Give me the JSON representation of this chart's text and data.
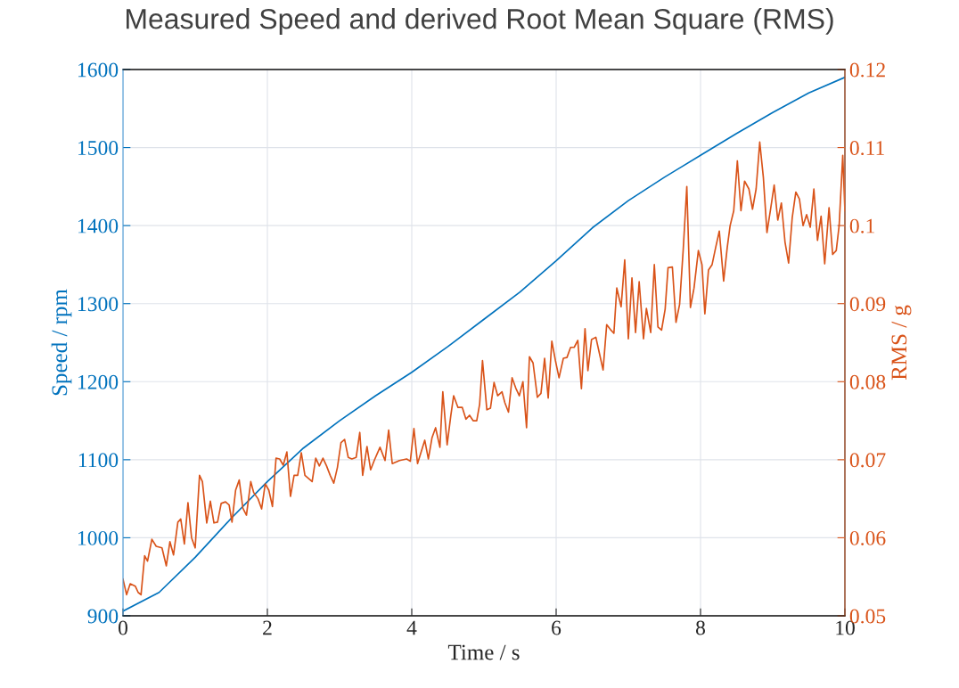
{
  "chart_data": {
    "type": "line",
    "title": "Measured Speed and derived Root Mean Square (RMS)",
    "xlabel": "Time / s",
    "ylabel": "Speed / rpm",
    "y2label": "RMS / g",
    "xlim": [
      0,
      10
    ],
    "xticks": [
      0,
      2,
      4,
      6,
      8,
      10
    ],
    "ylim": [
      900,
      1600
    ],
    "yticks": [
      900,
      1000,
      1100,
      1200,
      1300,
      1400,
      1500,
      1600
    ],
    "y2lim": [
      0.05,
      0.12
    ],
    "y2ticks": [
      0.05,
      0.06,
      0.07,
      0.08,
      0.09,
      0.1,
      0.11,
      0.12
    ],
    "grid": true,
    "marker": "none",
    "line_style": "solid",
    "series": [
      {
        "color": "#0072bd",
        "x": [
          0,
          0.5,
          1,
          1.5,
          2,
          2.5,
          3,
          3.5,
          4,
          4.5,
          5,
          5.5,
          6,
          6.5,
          7,
          7.5,
          8,
          8.5,
          9,
          9.5,
          10
        ],
        "values": [
          906,
          930,
          975,
          1025,
          1072,
          1115,
          1150,
          1182,
          1212,
          1245,
          1280,
          1315,
          1355,
          1397,
          1432,
          1462,
          1490,
          1518,
          1545,
          1570,
          1590
        ]
      },
      {
        "color": "#d95319",
        "axis": "y2",
        "x": [
          0,
          0.05,
          0.1,
          0.17,
          0.21,
          0.25,
          0.3,
          0.34,
          0.4,
          0.46,
          0.54,
          0.6,
          0.65,
          0.7,
          0.76,
          0.8,
          0.85,
          0.9,
          0.95,
          1.0,
          1.06,
          1.1,
          1.16,
          1.21,
          1.26,
          1.31,
          1.36,
          1.42,
          1.47,
          1.51,
          1.56,
          1.61,
          1.66,
          1.71,
          1.77,
          1.81,
          1.87,
          1.92,
          1.97,
          2.02,
          2.07,
          2.12,
          2.17,
          2.22,
          2.27,
          2.32,
          2.37,
          2.42,
          2.47,
          2.52,
          2.62,
          2.67,
          2.72,
          2.77,
          2.82,
          2.87,
          2.92,
          2.97,
          3.02,
          3.07,
          3.12,
          3.17,
          3.23,
          3.28,
          3.32,
          3.38,
          3.43,
          3.48,
          3.56,
          3.63,
          3.68,
          3.73,
          3.83,
          3.93,
          3.98,
          4.03,
          4.08,
          4.18,
          4.23,
          4.28,
          4.33,
          4.39,
          4.43,
          4.49,
          4.54,
          4.58,
          4.64,
          4.7,
          4.75,
          4.8,
          4.85,
          4.9,
          4.94,
          4.98,
          5.04,
          5.09,
          5.14,
          5.19,
          5.25,
          5.29,
          5.34,
          5.39,
          5.44,
          5.49,
          5.54,
          5.59,
          5.63,
          5.68,
          5.74,
          5.79,
          5.84,
          5.89,
          5.94,
          5.99,
          6.04,
          6.1,
          6.15,
          6.2,
          6.25,
          6.3,
          6.35,
          6.4,
          6.44,
          6.49,
          6.55,
          6.6,
          6.65,
          6.7,
          6.75,
          6.8,
          6.84,
          6.9,
          6.95,
          7.0,
          7.05,
          7.1,
          7.15,
          7.21,
          7.25,
          7.31,
          7.36,
          7.41,
          7.46,
          7.51,
          7.55,
          7.61,
          7.66,
          7.71,
          7.76,
          7.81,
          7.86,
          7.91,
          7.97,
          8.02,
          8.06,
          8.11,
          8.16,
          8.21,
          8.26,
          8.32,
          8.37,
          8.41,
          8.46,
          8.51,
          8.56,
          8.61,
          8.67,
          8.72,
          8.77,
          8.82,
          8.87,
          8.92,
          8.97,
          9.02,
          9.07,
          9.12,
          9.17,
          9.22,
          9.27,
          9.32,
          9.37,
          9.42,
          9.47,
          9.52,
          9.57,
          9.62,
          9.67,
          9.72,
          9.78,
          9.83,
          9.88,
          9.92,
          9.97,
          10.0
        ],
        "values": [
          0.0547,
          0.0527,
          0.0541,
          0.0538,
          0.053,
          0.0527,
          0.0577,
          0.057,
          0.0598,
          0.0589,
          0.0587,
          0.0564,
          0.0595,
          0.0578,
          0.062,
          0.0624,
          0.0592,
          0.0645,
          0.06,
          0.0587,
          0.068,
          0.0672,
          0.0619,
          0.0647,
          0.0619,
          0.062,
          0.0644,
          0.0646,
          0.0642,
          0.062,
          0.0661,
          0.0674,
          0.0638,
          0.0629,
          0.0672,
          0.0658,
          0.065,
          0.0637,
          0.0669,
          0.0661,
          0.064,
          0.0702,
          0.0701,
          0.0693,
          0.071,
          0.0653,
          0.068,
          0.068,
          0.0709,
          0.068,
          0.0672,
          0.0702,
          0.0692,
          0.0702,
          0.0692,
          0.068,
          0.067,
          0.069,
          0.0722,
          0.0726,
          0.0703,
          0.0701,
          0.0703,
          0.0735,
          0.068,
          0.0717,
          0.0687,
          0.0699,
          0.0716,
          0.0699,
          0.0738,
          0.0695,
          0.0699,
          0.0701,
          0.0698,
          0.074,
          0.0695,
          0.0725,
          0.0701,
          0.0728,
          0.0741,
          0.0716,
          0.0787,
          0.0719,
          0.0756,
          0.0782,
          0.0767,
          0.0767,
          0.0752,
          0.0757,
          0.075,
          0.075,
          0.0771,
          0.0827,
          0.0764,
          0.0766,
          0.0799,
          0.0782,
          0.0787,
          0.0773,
          0.0761,
          0.0805,
          0.0792,
          0.0782,
          0.08,
          0.0741,
          0.0832,
          0.0824,
          0.078,
          0.0785,
          0.083,
          0.0779,
          0.0852,
          0.0827,
          0.0805,
          0.083,
          0.0831,
          0.0844,
          0.0844,
          0.0853,
          0.0791,
          0.0868,
          0.0814,
          0.0854,
          0.0857,
          0.0836,
          0.0815,
          0.0873,
          0.0867,
          0.0862,
          0.092,
          0.0896,
          0.0956,
          0.0855,
          0.0933,
          0.0863,
          0.0928,
          0.0855,
          0.0894,
          0.0863,
          0.095,
          0.087,
          0.0866,
          0.0893,
          0.0946,
          0.0947,
          0.0876,
          0.0899,
          0.0969,
          0.105,
          0.0895,
          0.092,
          0.0968,
          0.095,
          0.0887,
          0.0943,
          0.095,
          0.0972,
          0.0993,
          0.0929,
          0.0972,
          0.1,
          0.1019,
          0.1083,
          0.1019,
          0.1057,
          0.1047,
          0.1021,
          0.1047,
          0.1107,
          0.1062,
          0.0991,
          0.1021,
          0.1052,
          0.1007,
          0.1029,
          0.0979,
          0.0952,
          0.101,
          0.1043,
          0.1034,
          0.1,
          0.1014,
          0.0998,
          0.1047,
          0.0981,
          0.1012,
          0.0951,
          0.1023,
          0.0963,
          0.0968,
          0.1,
          0.109,
          0.1019
        ]
      }
    ]
  }
}
